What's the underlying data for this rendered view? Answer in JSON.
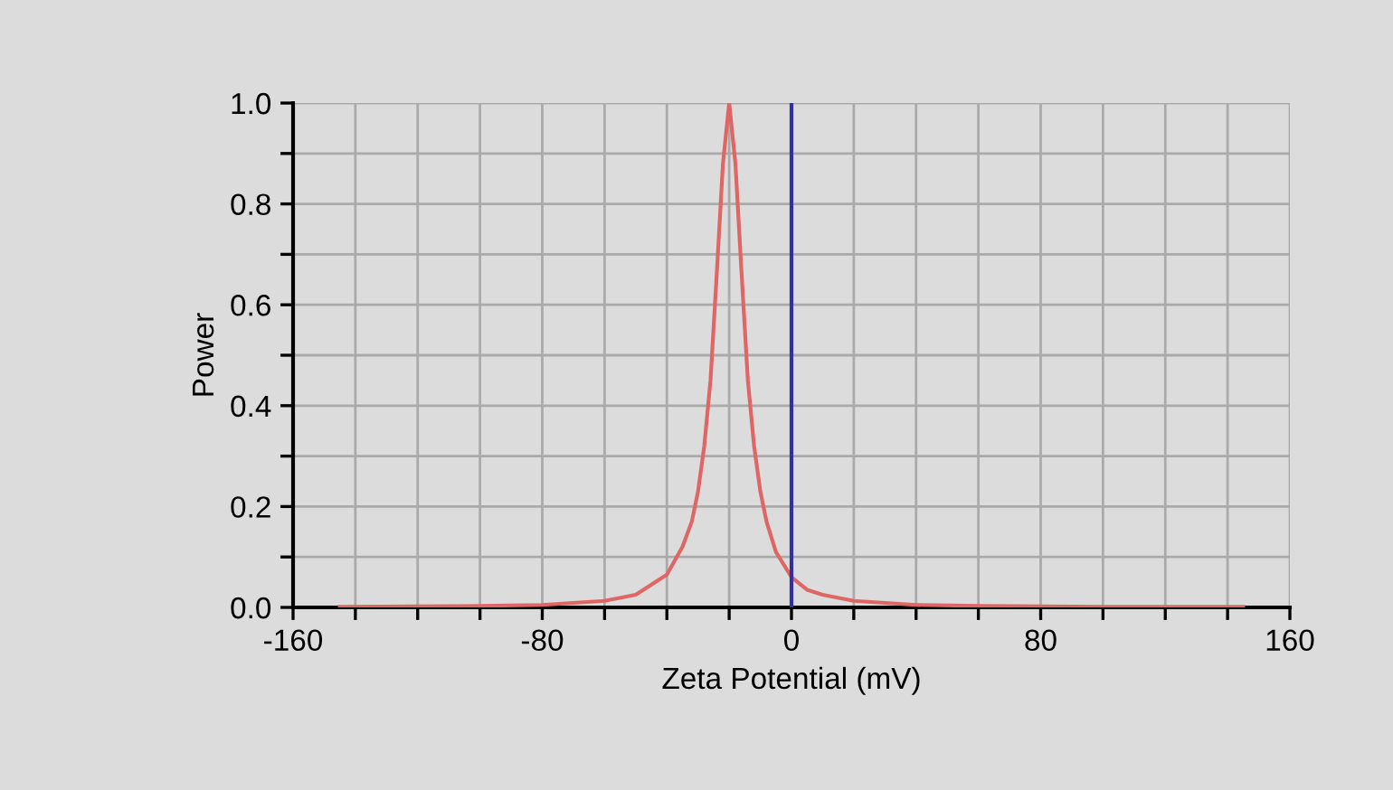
{
  "chart_data": {
    "type": "line",
    "xlabel": "Zeta Potential (mV)",
    "ylabel": "Power",
    "series": [
      {
        "color": "#e06666",
        "x": [
          -145,
          -120,
          -100,
          -80,
          -60,
          -50,
          -40,
          -35,
          -32,
          -30,
          -28,
          -26,
          -24,
          -22,
          -20,
          -18,
          -16,
          -14,
          -12,
          -10,
          -8,
          -5,
          0,
          5,
          10,
          20,
          40,
          60,
          80,
          100,
          120,
          145
        ],
        "values": [
          0.001,
          0.002,
          0.003,
          0.005,
          0.013,
          0.025,
          0.065,
          0.12,
          0.17,
          0.23,
          0.32,
          0.45,
          0.66,
          0.88,
          1.0,
          0.88,
          0.66,
          0.45,
          0.32,
          0.23,
          0.17,
          0.11,
          0.06,
          0.035,
          0.025,
          0.013,
          0.005,
          0.003,
          0.002,
          0.001,
          0.001,
          0.001
        ]
      }
    ],
    "ref_lines": [
      {
        "axis": "x",
        "value": 0,
        "color": "#3030a0"
      }
    ],
    "xlim": [
      -160,
      160
    ],
    "xticks": [
      -160,
      {
        "value": -140,
        "label": null
      },
      {
        "value": -120,
        "label": null
      },
      {
        "value": -100,
        "label": null
      },
      -80,
      {
        "value": -60,
        "label": null
      },
      {
        "value": -40,
        "label": null
      },
      {
        "value": -20,
        "label": null
      },
      0,
      {
        "value": 20,
        "label": null
      },
      {
        "value": 40,
        "label": null
      },
      {
        "value": 60,
        "label": null
      },
      80,
      {
        "value": 100,
        "label": null
      },
      {
        "value": 120,
        "label": null
      },
      {
        "value": 140,
        "label": null
      },
      160
    ],
    "ylim": [
      0,
      1
    ],
    "yticks": [
      {
        "value": 0,
        "label": "0.0"
      },
      {
        "value": 0.1,
        "label": null
      },
      {
        "value": 0.2,
        "label": "0.2"
      },
      {
        "value": 0.3,
        "label": null
      },
      {
        "value": 0.4,
        "label": "0.4"
      },
      {
        "value": 0.5,
        "label": null
      },
      {
        "value": 0.6,
        "label": "0.6"
      },
      {
        "value": 0.7,
        "label": null
      },
      {
        "value": 0.8,
        "label": "0.8"
      },
      {
        "value": 0.9,
        "label": null
      },
      {
        "value": 1,
        "label": "1.0"
      }
    ],
    "grid": true,
    "marker": "none",
    "line_style": "solid",
    "legend": false
  }
}
